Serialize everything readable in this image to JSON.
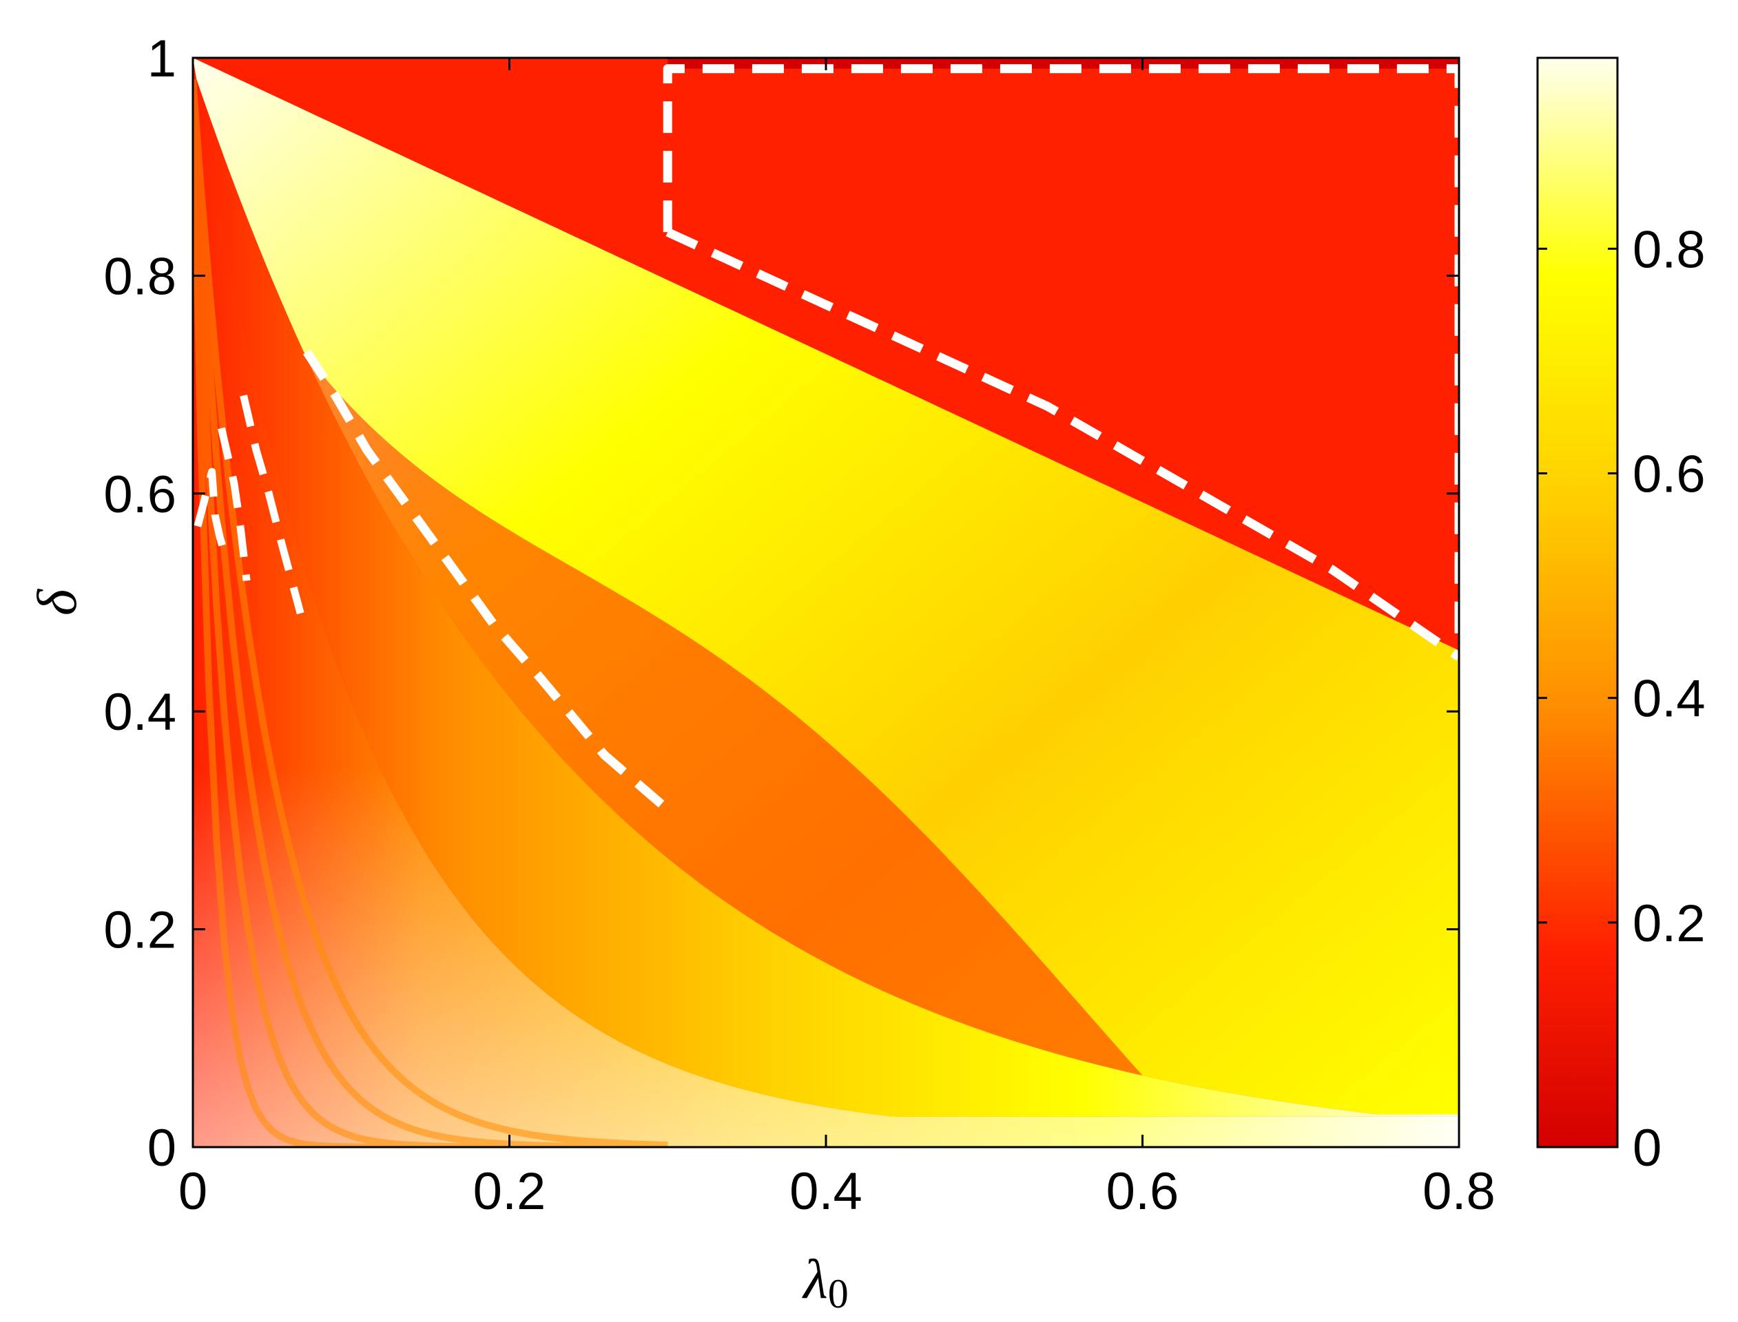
{
  "chart_data": {
    "type": "heatmap",
    "xlabel": "λ",
    "xlabel_subscript": "0",
    "ylabel": "δ",
    "xlim": [
      0,
      0.8
    ],
    "ylim": [
      0,
      1
    ],
    "x_ticks": [
      {
        "value": 0,
        "label": "0"
      },
      {
        "value": 0.2,
        "label": "0.2"
      },
      {
        "value": 0.4,
        "label": "0.4"
      },
      {
        "value": 0.6,
        "label": "0.6"
      },
      {
        "value": 0.8,
        "label": "0.8"
      }
    ],
    "y_ticks": [
      {
        "value": 0,
        "label": "0"
      },
      {
        "value": 0.2,
        "label": "0.2"
      },
      {
        "value": 0.4,
        "label": "0.4"
      },
      {
        "value": 0.6,
        "label": "0.6"
      },
      {
        "value": 0.8,
        "label": "0.8"
      },
      {
        "value": 1,
        "label": "1"
      }
    ],
    "colorbar": {
      "range": [
        0,
        0.97
      ],
      "colormap": "autumn-to-white",
      "colors": [
        "#d20000",
        "#ff2000",
        "#ff8c00",
        "#ffd000",
        "#ffff00",
        "#ffffee"
      ],
      "ticks": [
        {
          "value": 0,
          "label": "0"
        },
        {
          "value": 0.2,
          "label": "0.2"
        },
        {
          "value": 0.4,
          "label": "0.4"
        },
        {
          "value": 0.6,
          "label": "0.6"
        },
        {
          "value": 0.8,
          "label": "0.8"
        }
      ]
    },
    "grid": false,
    "regions": [
      {
        "boundary_x": [
          0.3,
          0.3,
          0.8,
          0.8
        ],
        "boundary_y": [
          0.84,
          0.99,
          0.99,
          0.45
        ],
        "note_value": 0
      },
      {
        "boundary_x": [
          0.07,
          0.1,
          0.14,
          0.18,
          0.22,
          0.26,
          0.3
        ],
        "boundary_y": [
          0.73,
          0.66,
          0.56,
          0.48,
          0.41,
          0.35,
          0.31
        ]
      }
    ],
    "dashed_boundaries": [
      {
        "x": [
          0.3,
          0.3,
          0.8,
          0.8
        ],
        "y": [
          0.84,
          0.99,
          0.99,
          0.45
        ]
      },
      {
        "x": [
          0.3,
          0.36,
          0.42,
          0.48,
          0.54,
          0.6,
          0.66,
          0.72,
          0.8
        ],
        "y": [
          0.84,
          0.8,
          0.76,
          0.72,
          0.68,
          0.63,
          0.58,
          0.53,
          0.45
        ]
      },
      {
        "x": [
          0.072,
          0.09,
          0.11,
          0.13,
          0.16,
          0.19,
          0.22,
          0.26,
          0.3
        ],
        "y": [
          0.73,
          0.69,
          0.64,
          0.6,
          0.54,
          0.48,
          0.43,
          0.36,
          0.31
        ]
      },
      {
        "x": [
          0.032,
          0.04,
          0.048,
          0.055,
          0.068
        ],
        "y": [
          0.69,
          0.64,
          0.6,
          0.56,
          0.49
        ]
      },
      {
        "x": [
          0.018,
          0.026,
          0.03,
          0.034
        ],
        "y": [
          0.66,
          0.61,
          0.57,
          0.52
        ]
      },
      {
        "x": [
          0.003,
          0.012,
          0.014,
          0.017,
          0.019
        ],
        "y": [
          0.57,
          0.62,
          0.58,
          0.56,
          0.55
        ]
      }
    ]
  }
}
